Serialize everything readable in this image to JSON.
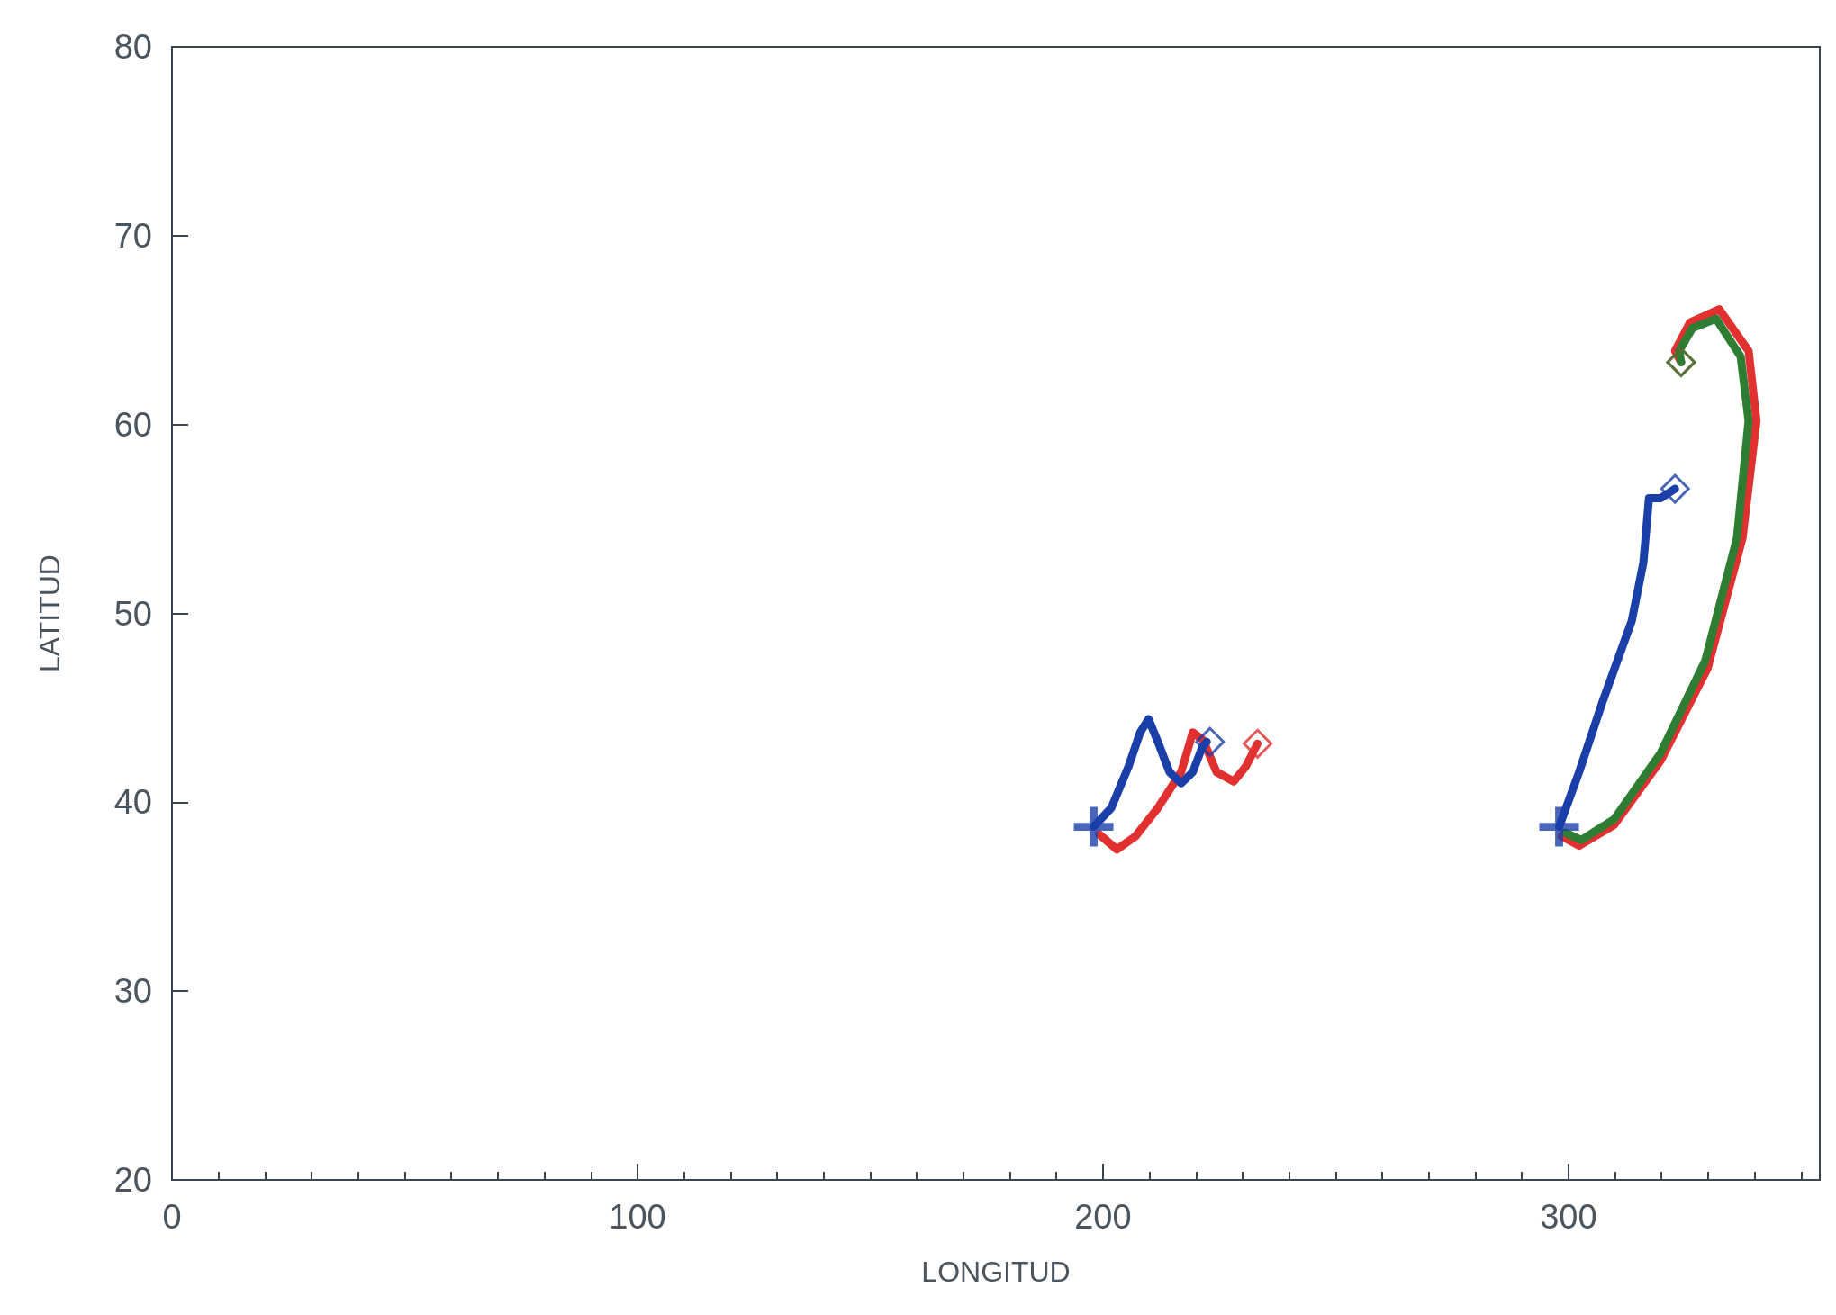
{
  "chart_data": {
    "type": "line",
    "xlabel": "LONGITUD",
    "ylabel": "LATITUD",
    "xlim": [
      0,
      354
    ],
    "xticks": [
      0,
      100,
      200,
      300
    ],
    "ylim": [
      20,
      80
    ],
    "yticks": [
      20,
      30,
      40,
      50,
      60,
      70,
      80
    ],
    "series": [
      {
        "color": "#e03030",
        "marker": "none",
        "x": [
          199.2,
          203,
          207,
          211.8,
          216.8,
          219.3,
          221.5,
          224.4,
          228.1,
          230.7,
          233.2
        ],
        "values": [
          38.3,
          37.5,
          38.2,
          39.7,
          41.6,
          43.7,
          43.3,
          41.6,
          41.1,
          41.9,
          43.1
        ]
      },
      {
        "color": "#1a3fa8",
        "marker": "none",
        "x": [
          198,
          201.8,
          205.5,
          208,
          209.8,
          211.8,
          214.3,
          216.8,
          219.3,
          221.3,
          222.3
        ],
        "values": [
          38.7,
          39.7,
          41.9,
          43.7,
          44.4,
          43.2,
          41.6,
          41,
          41.6,
          42.9,
          43.2
        ]
      },
      {
        "color": "#e03030",
        "marker": "none",
        "x": [
          298.5,
          302.3,
          309.8,
          319.8,
          329.9,
          337.4,
          340.4,
          338.7,
          332.4,
          326.1,
          322.9,
          324.2
        ],
        "values": [
          38.2,
          37.7,
          38.8,
          42.2,
          47.1,
          54,
          60.2,
          63.9,
          66.1,
          65.4,
          63.9,
          63.3
        ]
      },
      {
        "color": "#2e7d32",
        "marker": "none",
        "x": [
          299.2,
          302.8,
          309.8,
          319.8,
          329.4,
          336.2,
          338.7,
          337,
          331.7,
          326.6,
          323.8,
          324.2
        ],
        "values": [
          38.4,
          38,
          39.1,
          42.6,
          47.5,
          54,
          60.2,
          63.6,
          65.6,
          65.1,
          63.9,
          63.3
        ]
      },
      {
        "color": "#1a3fa8",
        "marker": "none",
        "x": [
          298,
          302.3,
          307.3,
          313.6,
          316.1,
          317.3,
          319.8,
          322.9
        ],
        "values": [
          38.7,
          41.6,
          45.3,
          49.6,
          52.7,
          56.1,
          56.1,
          56.6
        ]
      },
      {
        "type": "scatter",
        "color": "#1a3fa8",
        "marker": "cross",
        "x": [
          198,
          298
        ],
        "values": [
          38.7,
          38.7
        ]
      },
      {
        "type": "scatter",
        "color": "#e03030",
        "marker": "diamond",
        "x": [
          233.2,
          324.2
        ],
        "values": [
          43.1,
          63.3
        ]
      },
      {
        "type": "scatter",
        "color": "#1a3fa8",
        "marker": "diamond",
        "x": [
          223,
          322.9
        ],
        "values": [
          43.2,
          56.6
        ]
      },
      {
        "type": "scatter",
        "color": "#2e7d32",
        "marker": "diamond",
        "x": [
          324.2
        ],
        "values": [
          63.3
        ]
      }
    ]
  }
}
